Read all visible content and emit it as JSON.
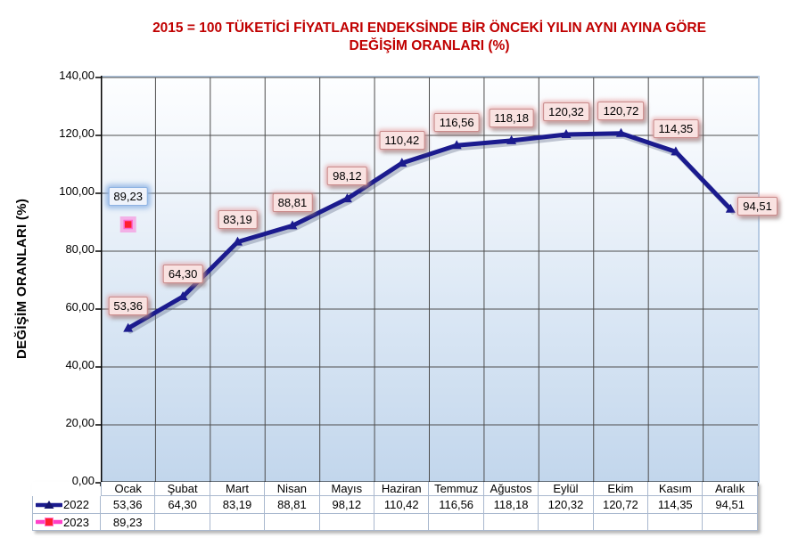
{
  "title": {
    "line1": "2015 = 100 TÜKETİCİ FİYATLARI ENDEKSİNDE BİR ÖNCEKİ YILIN AYNI AYINA GÖRE",
    "line2": "DEĞİŞİM ORANLARI (%)",
    "color": "#C00000"
  },
  "y_axis": {
    "label": "DEĞİŞİM ORANLARI (%)",
    "tick_labels": [
      "0,00",
      "20,00",
      "40,00",
      "60,00",
      "80,00",
      "100,00",
      "120,00",
      "140,00"
    ]
  },
  "chart_data": {
    "type": "line",
    "title": "2015 = 100 TÜKETİCİ FİYATLARI ENDEKSİNDE BİR ÖNCEKİ YILIN AYNI AYINA GÖRE DEĞİŞİM ORANLARI (%)",
    "ylabel": "DEĞİŞİM ORANLARI (%)",
    "ylim": [
      0,
      140
    ],
    "y_step": 20,
    "grid": true,
    "legend_position": "data-table-left",
    "categories": [
      "Ocak",
      "Şubat",
      "Mart",
      "Nisan",
      "Mayıs",
      "Haziran",
      "Temmuz",
      "Ağustos",
      "Eylül",
      "Ekim",
      "Kasım",
      "Aralık"
    ],
    "series": [
      {
        "name": "2022",
        "color": "#1B1B8E",
        "marker": "triangle",
        "marker_color": "#14146E",
        "label_style": "pink",
        "values": [
          53.36,
          64.3,
          83.19,
          88.81,
          98.12,
          110.42,
          116.56,
          118.18,
          120.32,
          120.72,
          114.35,
          94.51
        ],
        "value_labels": [
          "53,36",
          "64,30",
          "83,19",
          "88,81",
          "98,12",
          "110,42",
          "116,56",
          "118,18",
          "120,32",
          "120,72",
          "114,35",
          "94,51"
        ],
        "label_placement": [
          "above",
          "above",
          "above",
          "above",
          "above",
          "above",
          "above",
          "above",
          "above",
          "above",
          "above",
          "right"
        ]
      },
      {
        "name": "2023",
        "color": "#FF3FC8",
        "marker": "square",
        "marker_color": "#FF1F2F",
        "label_style": "blue",
        "values": [
          89.23,
          null,
          null,
          null,
          null,
          null,
          null,
          null,
          null,
          null,
          null,
          null
        ],
        "value_labels": [
          "89,23",
          "",
          "",
          "",
          "",
          "",
          "",
          "",
          "",
          "",
          "",
          ""
        ],
        "label_placement": [
          "above"
        ]
      }
    ]
  },
  "colors": {
    "title": "#C00000",
    "gridline": "#4D4D4D",
    "axis": "#000000",
    "plot_border": "#B7CBE3",
    "plot_gradient_top": "#FDFEFF",
    "plot_gradient_bottom": "#C2D6EC",
    "label_pink_bg": "#F9E2E1",
    "label_pink_border": "#C98B8B",
    "label_blue_bg": "#EFF3FB",
    "label_blue_border": "#8EB3E3",
    "table_border": "#A9B8CE"
  }
}
